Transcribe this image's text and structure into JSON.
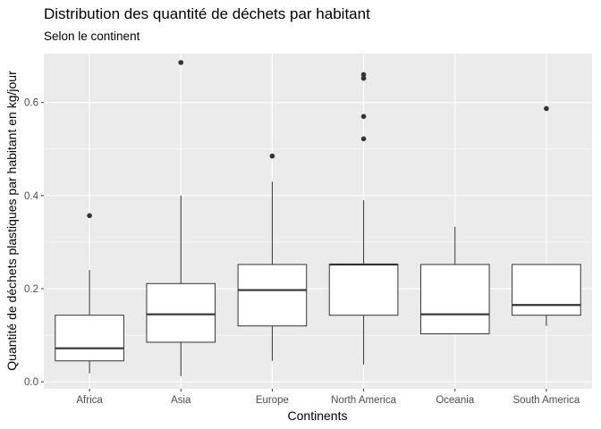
{
  "chart_data": {
    "type": "box",
    "title": "Distribution des quantité de déchets par habitant",
    "subtitle": "Selon le continent",
    "xlabel": "Continents",
    "ylabel": "Quantité de déchets plastiques par habitant en kg/jour",
    "ylim": [
      -0.015,
      0.705
    ],
    "yticks": [
      0.0,
      0.2,
      0.4,
      0.6
    ],
    "ytick_labels": [
      "0.0",
      "0.2",
      "0.4",
      "0.6"
    ],
    "grid": true,
    "colors": {
      "panel": "#ebebeb",
      "grid": "#ffffff",
      "box_fill": "#ffffff",
      "line": "#333333"
    },
    "categories": [
      "Africa",
      "Asia",
      "Europe",
      "North America",
      "Oceania",
      "South America"
    ],
    "boxes": [
      {
        "whisker_low": 0.018,
        "q1": 0.045,
        "median": 0.072,
        "q3": 0.143,
        "whisker_high": 0.24,
        "outliers": [
          0.357
        ]
      },
      {
        "whisker_low": 0.012,
        "q1": 0.085,
        "median": 0.145,
        "q3": 0.211,
        "whisker_high": 0.4,
        "outliers": [
          0.686
        ]
      },
      {
        "whisker_low": 0.045,
        "q1": 0.12,
        "median": 0.197,
        "q3": 0.252,
        "whisker_high": 0.43,
        "outliers": [
          0.485
        ]
      },
      {
        "whisker_low": 0.037,
        "q1": 0.143,
        "median": 0.252,
        "q3": 0.252,
        "whisker_high": 0.39,
        "outliers": [
          0.522,
          0.57,
          0.652,
          0.66
        ]
      },
      {
        "whisker_low": 0.103,
        "q1": 0.103,
        "median": 0.145,
        "q3": 0.252,
        "whisker_high": 0.333,
        "outliers": []
      },
      {
        "whisker_low": 0.12,
        "q1": 0.143,
        "median": 0.165,
        "q3": 0.252,
        "whisker_high": 0.252,
        "outliers": [
          0.587
        ]
      }
    ]
  }
}
